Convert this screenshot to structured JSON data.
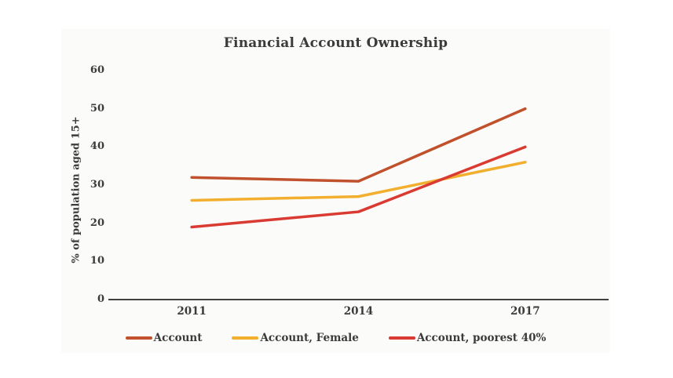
{
  "chart_data": {
    "type": "line",
    "title": "Financial Account Ownership",
    "xlabel": "",
    "ylabel": "% of population aged 15+",
    "categories": [
      "2011",
      "2014",
      "2017"
    ],
    "series": [
      {
        "name": "Account",
        "color": "#c0512c",
        "values": [
          32,
          31,
          50
        ]
      },
      {
        "name": "Account, Female",
        "color": "#f2af2e",
        "values": [
          26,
          27,
          36
        ]
      },
      {
        "name": "Account, poorest 40%",
        "color": "#d93a31",
        "values": [
          19,
          23,
          40
        ]
      }
    ],
    "ylim": [
      0,
      60
    ],
    "ytick_step": 10,
    "grid": false,
    "legend_position": "bottom"
  },
  "colors": {
    "text": "#3b3b3b",
    "axis_line": "#404040",
    "background": "#ffffff",
    "card_background": "#fbfbfa"
  }
}
